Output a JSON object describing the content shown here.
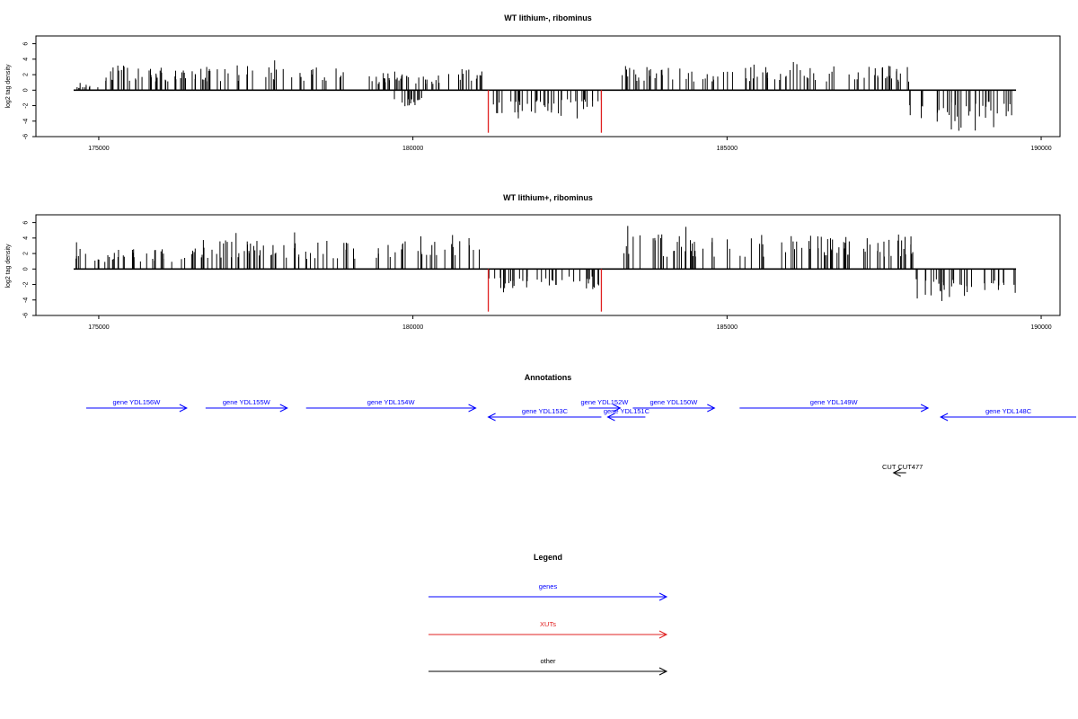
{
  "chart_data": [
    {
      "type": "bar",
      "title": "WT lithium-, ribominus",
      "xlabel": "",
      "ylabel": "log2 tag density",
      "xlim": [
        174000,
        190300
      ],
      "ylim": [
        -6,
        7
      ],
      "xticks": [
        175000,
        180000,
        185000,
        190000
      ],
      "yticks": [
        6,
        4,
        2,
        0,
        -2,
        -4,
        -6
      ],
      "baseline": [
        174600,
        189600
      ],
      "highlight_bars": [
        {
          "x": 181200,
          "y": -5.5,
          "color": "#e02020"
        },
        {
          "x": 183000,
          "y": -5.5,
          "color": "#e02020"
        }
      ],
      "profile": [
        {
          "from": 174600,
          "to": 175000,
          "sign": 1,
          "max": 1.0
        },
        {
          "from": 175100,
          "to": 178900,
          "sign": 1,
          "max": 4.3
        },
        {
          "from": 179300,
          "to": 180500,
          "sign": 1,
          "max": 3.0
        },
        {
          "from": 180500,
          "to": 181100,
          "sign": 1,
          "max": 4.5
        },
        {
          "from": 179700,
          "to": 180300,
          "sign": -1,
          "max": 2.8
        },
        {
          "from": 181200,
          "to": 183000,
          "sign": -1,
          "max": 4.0
        },
        {
          "from": 183300,
          "to": 187900,
          "sign": 1,
          "max": 4.2
        },
        {
          "from": 187900,
          "to": 189600,
          "sign": -1,
          "max": 5.5
        }
      ]
    },
    {
      "type": "bar",
      "title": "WT lithium+, ribominus",
      "xlabel": "",
      "ylabel": "log2 tag density",
      "xlim": [
        174000,
        190300
      ],
      "ylim": [
        -6,
        7
      ],
      "xticks": [
        175000,
        180000,
        185000,
        190000
      ],
      "yticks": [
        6,
        4,
        2,
        0,
        -2,
        -4,
        -6
      ],
      "baseline": [
        174600,
        189600
      ],
      "highlight_bars": [
        {
          "x": 181200,
          "y": -5.5,
          "color": "#e02020"
        },
        {
          "x": 183000,
          "y": -5.5,
          "color": "#e02020"
        }
      ],
      "profile": [
        {
          "from": 174600,
          "to": 176500,
          "sign": 1,
          "max": 3.5
        },
        {
          "from": 176500,
          "to": 180200,
          "sign": 1,
          "max": 5.0
        },
        {
          "from": 180200,
          "to": 181100,
          "sign": 1,
          "max": 6.3
        },
        {
          "from": 181200,
          "to": 183000,
          "sign": -1,
          "max": 3.5
        },
        {
          "from": 183300,
          "to": 188000,
          "sign": 1,
          "max": 6.0
        },
        {
          "from": 188000,
          "to": 189600,
          "sign": -1,
          "max": 5.0
        }
      ]
    }
  ],
  "annotations": {
    "title": "Annotations",
    "items": [
      {
        "label": "gene YDL156W",
        "start": 174800,
        "end": 176400,
        "dir": "fwd",
        "row": 0,
        "color": "#0000ff"
      },
      {
        "label": "gene YDL155W",
        "start": 176700,
        "end": 178000,
        "dir": "fwd",
        "row": 0,
        "color": "#0000ff"
      },
      {
        "label": "gene YDL154W",
        "start": 178300,
        "end": 181000,
        "dir": "fwd",
        "row": 0,
        "color": "#0000ff"
      },
      {
        "label": "gene YDL153C",
        "start": 181200,
        "end": 183000,
        "dir": "rev",
        "row": 1,
        "color": "#0000ff"
      },
      {
        "label": "gene YDL152W",
        "start": 182800,
        "end": 183300,
        "dir": "fwd",
        "row": 0,
        "color": "#0000ff"
      },
      {
        "label": "gene YDL151C",
        "start": 183100,
        "end": 183700,
        "dir": "rev",
        "row": 1,
        "color": "#0000ff"
      },
      {
        "label": "gene YDL150W",
        "start": 183500,
        "end": 184800,
        "dir": "fwd",
        "row": 0,
        "color": "#0000ff"
      },
      {
        "label": "gene YDL149W",
        "start": 185200,
        "end": 188200,
        "dir": "fwd",
        "row": 0,
        "color": "#0000ff"
      },
      {
        "label": "gene YDL148C",
        "start": 188400,
        "end": 190600,
        "dir": "rev",
        "row": 1,
        "color": "#0000ff"
      },
      {
        "label": "CUT CUT477",
        "start": 187650,
        "end": 187850,
        "dir": "rev",
        "row": 2,
        "color": "#000000"
      }
    ]
  },
  "legend": {
    "title": "Legend",
    "items": [
      {
        "label": "genes",
        "color": "#0000ff"
      },
      {
        "label": "XUTs",
        "color": "#e02020"
      },
      {
        "label": "other",
        "color": "#000000"
      }
    ]
  }
}
